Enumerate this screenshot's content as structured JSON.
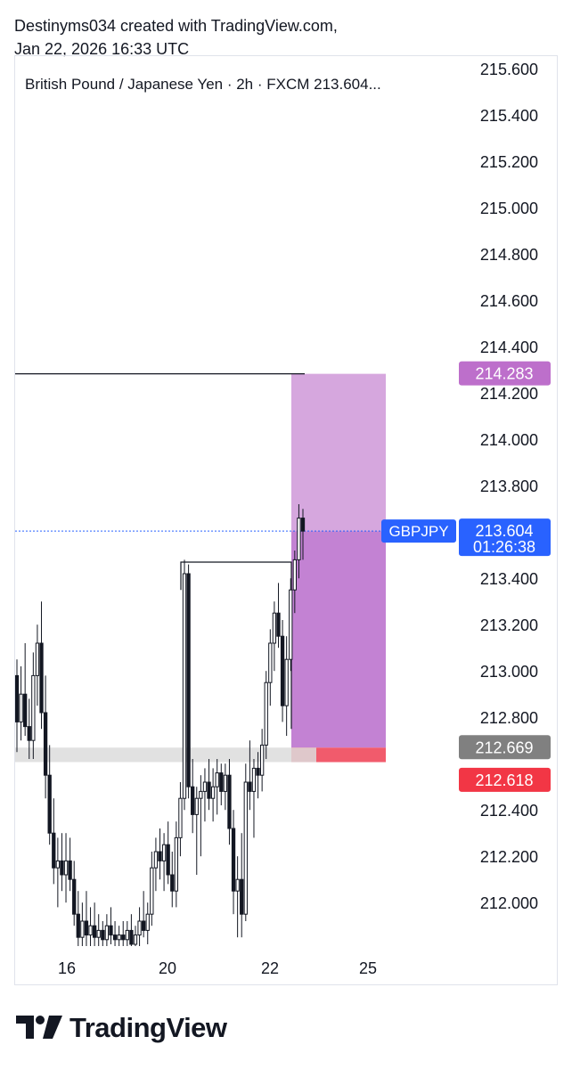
{
  "credit": {
    "line1": "Destinyms034 created with TradingView.com,",
    "line2": "Jan 22, 2026 16:33 UTC"
  },
  "title": "British Pound / Japanese Yen · 2h · FXCM  213.604...",
  "brand": {
    "name": "TradingView",
    "logo_icon": "tradingview-logo-icon"
  },
  "colors": {
    "profit_zone": "#d6a7de",
    "active_zone": "#c382d3",
    "stop_zone": "#f15b6c",
    "entry_zone": "#dcdcdc",
    "price_label": "#2962ff",
    "target_label": "#bd6fcb",
    "entry_label": "#808080",
    "stop_label": "#f23645"
  },
  "chart_data": {
    "type": "candlestick",
    "symbol": "GBPJPY",
    "interval": "2h",
    "yticks": [
      215.6,
      215.4,
      215.2,
      215.0,
      214.8,
      214.6,
      214.4,
      214.2,
      214.0,
      213.8,
      213.4,
      213.2,
      213.0,
      212.8,
      212.4,
      212.2,
      212.0
    ],
    "xticks": [
      "16",
      "20",
      "22",
      "25"
    ],
    "price_labels": {
      "current": {
        "symbol": "GBPJPY",
        "price": "213.604",
        "countdown": "01:26:38"
      },
      "target": "214.283",
      "entry": "212.669",
      "stop": "212.618"
    },
    "horizontal_levels": [
      {
        "name": "resistance",
        "price": 214.283
      },
      {
        "name": "step-high",
        "price": 213.47
      }
    ],
    "position": {
      "entry": 212.669,
      "stop": 212.618,
      "target": 214.283,
      "current": 213.604
    },
    "candles": [
      [
        212.98,
        213.05,
        212.65,
        212.78
      ],
      [
        212.78,
        213.02,
        212.7,
        212.9
      ],
      [
        212.9,
        213.12,
        212.72,
        212.76
      ],
      [
        212.76,
        212.88,
        212.62,
        212.7
      ],
      [
        212.7,
        213.08,
        212.62,
        212.98
      ],
      [
        212.98,
        213.2,
        212.85,
        213.12
      ],
      [
        213.12,
        213.3,
        212.75,
        212.82
      ],
      [
        212.82,
        212.98,
        212.45,
        212.55
      ],
      [
        212.55,
        212.68,
        212.25,
        212.3
      ],
      [
        212.3,
        212.45,
        212.08,
        212.15
      ],
      [
        212.15,
        212.28,
        211.98,
        212.18
      ],
      [
        212.18,
        212.3,
        212.05,
        212.12
      ],
      [
        212.12,
        212.3,
        212.0,
        212.18
      ],
      [
        212.18,
        212.28,
        212.05,
        212.1
      ],
      [
        212.1,
        212.18,
        211.9,
        211.95
      ],
      [
        211.95,
        212.05,
        211.8,
        211.85
      ],
      [
        211.85,
        212.0,
        211.8,
        211.92
      ],
      [
        211.92,
        212.05,
        211.8,
        211.86
      ],
      [
        211.86,
        211.98,
        211.8,
        211.9
      ],
      [
        211.9,
        212.0,
        211.8,
        211.85
      ],
      [
        211.85,
        211.95,
        211.8,
        211.88
      ],
      [
        211.88,
        211.92,
        211.8,
        211.84
      ],
      [
        211.84,
        211.95,
        211.8,
        211.9
      ],
      [
        211.9,
        211.98,
        211.82,
        211.86
      ],
      [
        211.86,
        211.92,
        211.8,
        211.84
      ],
      [
        211.84,
        211.9,
        211.8,
        211.86
      ],
      [
        211.86,
        211.92,
        211.8,
        211.84
      ],
      [
        211.84,
        211.92,
        211.8,
        211.88
      ],
      [
        211.88,
        211.95,
        211.8,
        211.82
      ],
      [
        211.82,
        211.9,
        211.8,
        211.86
      ],
      [
        211.86,
        211.98,
        211.8,
        211.92
      ],
      [
        211.92,
        212.05,
        211.85,
        211.88
      ],
      [
        211.88,
        212.0,
        211.82,
        211.95
      ],
      [
        211.95,
        212.22,
        211.9,
        212.15
      ],
      [
        212.15,
        212.28,
        212.05,
        212.22
      ],
      [
        212.22,
        212.32,
        212.1,
        212.18
      ],
      [
        212.18,
        212.3,
        212.05,
        212.25
      ],
      [
        212.25,
        212.35,
        212.08,
        212.12
      ],
      [
        212.12,
        212.22,
        211.98,
        212.05
      ],
      [
        212.05,
        212.35,
        211.98,
        212.28
      ],
      [
        212.28,
        212.52,
        212.2,
        212.45
      ],
      [
        212.45,
        213.48,
        212.4,
        213.42
      ],
      [
        213.42,
        213.46,
        212.45,
        212.5
      ],
      [
        212.5,
        212.62,
        212.3,
        212.38
      ],
      [
        212.38,
        212.5,
        212.12,
        212.45
      ],
      [
        212.45,
        212.55,
        212.2,
        212.48
      ],
      [
        212.48,
        212.58,
        212.35,
        212.52
      ],
      [
        212.52,
        212.62,
        212.4,
        212.45
      ],
      [
        212.45,
        212.58,
        212.35,
        212.5
      ],
      [
        212.5,
        212.62,
        212.38,
        212.56
      ],
      [
        212.56,
        212.6,
        212.42,
        212.48
      ],
      [
        212.48,
        212.6,
        212.4,
        212.55
      ],
      [
        212.55,
        212.62,
        212.25,
        212.32
      ],
      [
        212.32,
        212.4,
        211.95,
        212.05
      ],
      [
        212.05,
        212.2,
        211.85,
        212.1
      ],
      [
        212.1,
        212.3,
        211.85,
        211.95
      ],
      [
        211.95,
        212.6,
        211.92,
        212.52
      ],
      [
        212.52,
        212.7,
        212.4,
        212.48
      ],
      [
        212.48,
        212.62,
        212.28,
        212.58
      ],
      [
        212.58,
        212.65,
        212.45,
        212.55
      ],
      [
        212.55,
        212.75,
        212.48,
        212.68
      ],
      [
        212.68,
        213.0,
        212.62,
        212.95
      ],
      [
        212.95,
        213.18,
        212.85,
        213.12
      ],
      [
        213.12,
        213.3,
        213.0,
        213.25
      ],
      [
        213.25,
        213.38,
        213.1,
        213.15
      ],
      [
        213.15,
        213.22,
        212.78,
        212.85
      ],
      [
        212.85,
        213.15,
        212.72,
        213.05
      ],
      [
        213.05,
        213.4,
        213.0,
        213.35
      ],
      [
        213.35,
        213.52,
        213.25,
        213.48
      ],
      [
        213.48,
        213.72,
        213.4,
        213.66
      ],
      [
        213.66,
        213.7,
        213.48,
        213.604
      ]
    ]
  }
}
